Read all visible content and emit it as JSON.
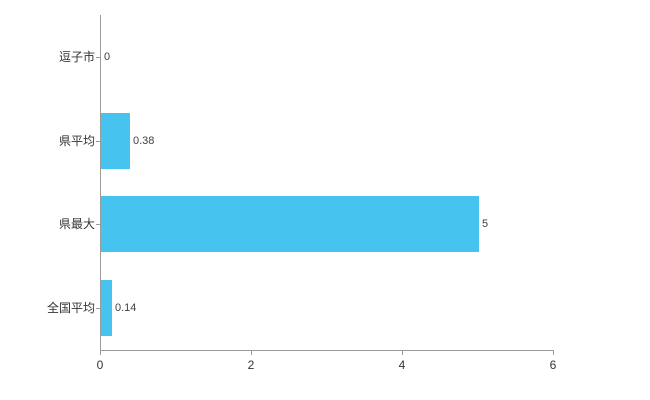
{
  "chart_data": {
    "type": "bar",
    "orientation": "horizontal",
    "title": "",
    "xlabel": "",
    "ylabel": "",
    "categories": [
      "逗子市",
      "県平均",
      "県最大",
      "全国平均"
    ],
    "values": [
      0,
      0.38,
      5,
      0.14
    ],
    "value_labels": [
      "0",
      "0.38",
      "5",
      "0.14"
    ],
    "x_ticks": [
      0,
      2,
      4,
      6
    ],
    "xlim": [
      0,
      6
    ],
    "grid": false,
    "legend": false,
    "bar_color": "#47C3EF",
    "axis_color": "#9B9B9B",
    "label_color": "#333333",
    "background_color": "#FFFFFF"
  }
}
